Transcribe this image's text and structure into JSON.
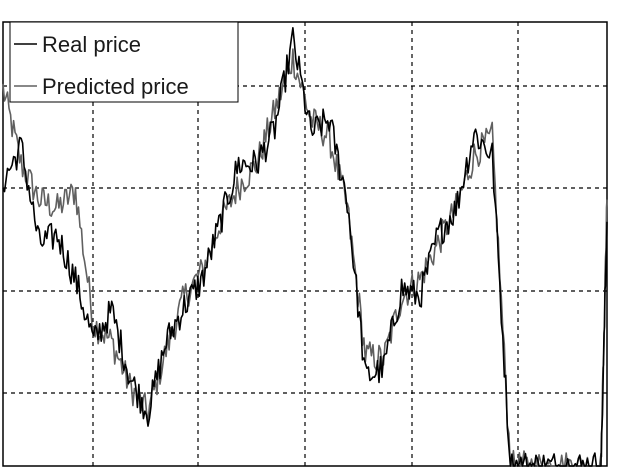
{
  "chart_data": {
    "type": "line",
    "title": "",
    "xlabel": "",
    "ylabel": "",
    "grid": true,
    "legend_position": "top-left",
    "x": [
      0,
      3,
      6,
      9,
      12,
      15,
      18,
      21,
      24,
      27,
      30,
      33,
      36,
      39,
      42,
      45,
      48,
      51,
      54,
      57,
      60,
      63,
      66,
      69,
      72,
      75,
      78,
      81,
      84,
      87,
      90,
      93,
      96,
      99,
      100
    ],
    "xlim": [
      0,
      100
    ],
    "ylim": [
      0,
      100
    ],
    "series": [
      {
        "name": "Real price",
        "color": "#000000",
        "values": [
          64,
          72,
          50,
          52,
          42,
          28,
          35,
          20,
          12,
          28,
          36,
          42,
          55,
          68,
          68,
          76,
          96,
          75,
          78,
          60,
          20,
          22,
          40,
          38,
          52,
          58,
          75,
          70,
          0,
          0,
          0,
          0,
          0,
          0,
          55
        ]
      },
      {
        "name": "Predicted price",
        "color": "#606060",
        "values": [
          85,
          68,
          60,
          58,
          62,
          32,
          28,
          18,
          12,
          26,
          38,
          44,
          55,
          63,
          68,
          80,
          92,
          78,
          74,
          58,
          25,
          24,
          38,
          42,
          50,
          58,
          70,
          74,
          0,
          0,
          0,
          0,
          0,
          0,
          60
        ]
      }
    ]
  }
}
